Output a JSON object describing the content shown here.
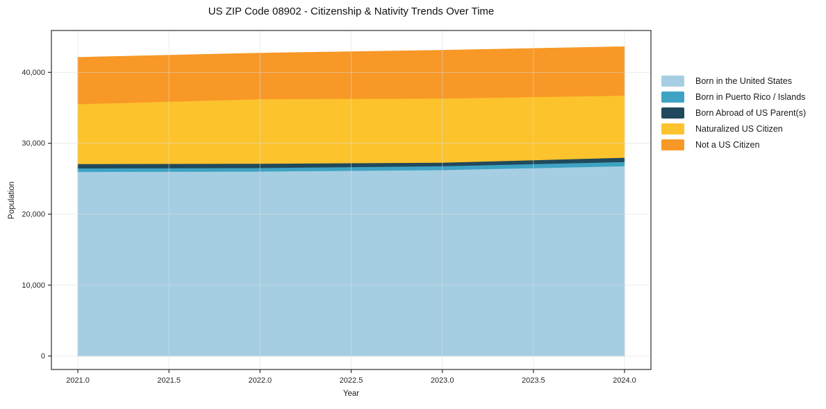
{
  "chart_data": {
    "type": "area",
    "stacked": true,
    "title": "US ZIP Code 08902 - Citizenship & Nativity Trends Over Time",
    "xlabel": "Year",
    "ylabel": "Population",
    "x": [
      2021,
      2022,
      2023,
      2024
    ],
    "series": [
      {
        "name": "Born in the United States",
        "color": "#A6CEE3",
        "values": [
          26000,
          26050,
          26250,
          26800
        ]
      },
      {
        "name": "Born in Puerto Rico / Islands",
        "color": "#3EA3C3",
        "values": [
          500,
          500,
          550,
          600
        ]
      },
      {
        "name": "Born Abroad of US Parent(s)",
        "color": "#21495C",
        "values": [
          600,
          600,
          500,
          600
        ]
      },
      {
        "name": "Naturalized US Citizen",
        "color": "#FDC32D",
        "values": [
          8450,
          9100,
          9050,
          8750
        ]
      },
      {
        "name": "Not a US Citizen",
        "color": "#F89827",
        "values": [
          6550,
          6450,
          6750,
          6850
        ]
      }
    ],
    "x_ticks": [
      2021.0,
      2021.5,
      2022.0,
      2022.5,
      2023.0,
      2023.5,
      2024.0
    ],
    "x_tick_labels": [
      "2021.0",
      "2021.5",
      "2022.0",
      "2022.5",
      "2023.0",
      "2023.5",
      "2024.0"
    ],
    "y_ticks": [
      0,
      10000,
      20000,
      30000,
      40000
    ],
    "y_tick_labels": [
      "0",
      "10,000",
      "20,000",
      "30,000",
      "40,000"
    ],
    "xlim": [
      2020.855,
      2024.145
    ],
    "ylim": [
      -1900,
      45900
    ],
    "grid": true,
    "legend_position": "right",
    "colors": {
      "frame": "#2b2b2b",
      "grid": "#dcdcdc",
      "tick_text": "#262626"
    }
  }
}
